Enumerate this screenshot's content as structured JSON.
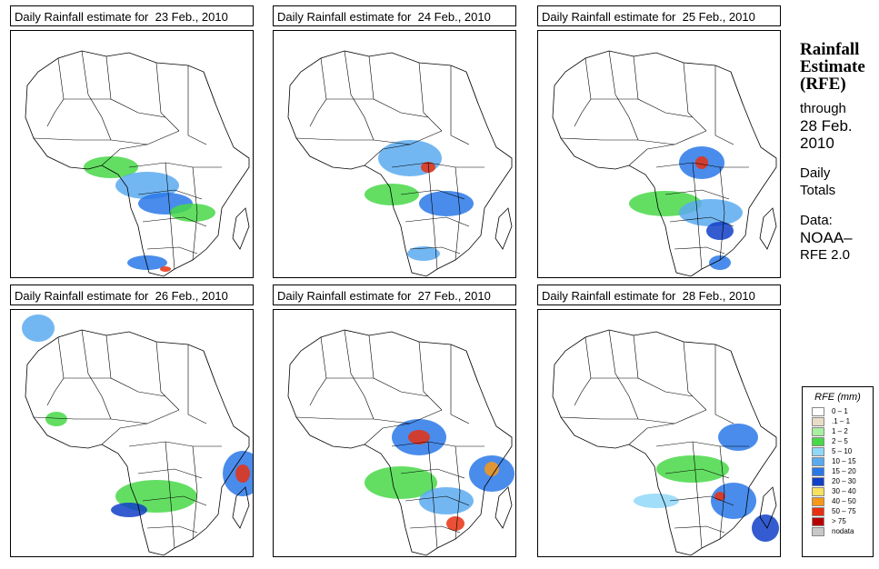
{
  "panels": [
    {
      "title": "Daily Rainfall estimate for  23 Feb., 2010"
    },
    {
      "title": "Daily Rainfall estimate for  24 Feb., 2010"
    },
    {
      "title": "Daily Rainfall estimate for  25 Feb., 2010"
    },
    {
      "title": "Daily Rainfall estimate for  26 Feb., 2010"
    },
    {
      "title": "Daily Rainfall estimate for  27 Feb., 2010"
    },
    {
      "title": "Daily Rainfall estimate for  28 Feb., 2010"
    }
  ],
  "side": {
    "title_line1": "Rainfall",
    "title_line2": "Estimate",
    "title_line3": "(RFE)",
    "through": "through",
    "date_line1": "28 Feb.",
    "date_line2": "2010",
    "daily_line1": "Daily",
    "daily_line2": "Totals",
    "data_line1": "Data:",
    "data_line2": "NOAA–",
    "data_line3": "RFE 2.0"
  },
  "legend": {
    "title": "RFE (mm)",
    "items": [
      {
        "label": "0 – 1",
        "color": "#ffffff"
      },
      {
        "label": ".1 – 1",
        "color": "#e8dcc8"
      },
      {
        "label": "1 – 2",
        "color": "#a8f0a0"
      },
      {
        "label": "2 – 5",
        "color": "#48d848"
      },
      {
        "label": "5 – 10",
        "color": "#90d8f8"
      },
      {
        "label": "10 – 15",
        "color": "#5aaaf0"
      },
      {
        "label": "15 – 20",
        "color": "#2a78e8"
      },
      {
        "label": "20 – 30",
        "color": "#1040c8"
      },
      {
        "label": "30 – 40",
        "color": "#f8e060"
      },
      {
        "label": "40 – 50",
        "color": "#f89818"
      },
      {
        "label": "50 – 75",
        "color": "#e83010"
      },
      {
        "label": "> 75",
        "color": "#b80000"
      },
      {
        "label": "nodata",
        "color": "#c8c8c8"
      }
    ]
  }
}
